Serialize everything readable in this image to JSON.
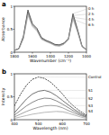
{
  "chart_data": [
    {
      "type": "line",
      "title": "a",
      "x_label": "Wavenumber (cm⁻¹)",
      "y_label": "Absorbance",
      "x": [
        1800,
        1750,
        1700,
        1650,
        1600,
        1550,
        1500,
        1450,
        1400,
        1350,
        1300,
        1250,
        1200,
        1150,
        1100,
        1050,
        1000
      ],
      "xlim": [
        1800,
        1000
      ],
      "xticks": [
        1800,
        1600,
        1400,
        1200,
        1000
      ],
      "ylim": [
        0,
        1
      ],
      "yticks": [
        0,
        0.5,
        1
      ],
      "series": [
        {
          "name": "0 h",
          "color": "#222222",
          "line_style": "solid",
          "values": [
            0.04,
            0.08,
            0.35,
            0.92,
            0.62,
            0.52,
            0.32,
            0.26,
            0.22,
            0.17,
            0.16,
            0.2,
            0.3,
            0.84,
            0.5,
            0.14,
            0.05
          ]
        },
        {
          "name": "2 h",
          "color": "#555555",
          "line_style": "solid",
          "values": [
            0.04,
            0.08,
            0.33,
            0.88,
            0.6,
            0.5,
            0.3,
            0.25,
            0.21,
            0.16,
            0.15,
            0.19,
            0.29,
            0.8,
            0.48,
            0.13,
            0.05
          ]
        },
        {
          "name": "4 h",
          "color": "#888888",
          "line_style": "solid",
          "values": [
            0.04,
            0.07,
            0.31,
            0.84,
            0.58,
            0.48,
            0.29,
            0.24,
            0.2,
            0.15,
            0.14,
            0.18,
            0.28,
            0.76,
            0.46,
            0.12,
            0.05
          ]
        },
        {
          "name": "6 h",
          "color": "#aaaaaa",
          "line_style": "solid",
          "values": [
            0.03,
            0.07,
            0.29,
            0.8,
            0.56,
            0.46,
            0.28,
            0.23,
            0.19,
            0.14,
            0.13,
            0.17,
            0.27,
            0.72,
            0.44,
            0.12,
            0.04
          ]
        }
      ]
    },
    {
      "type": "line",
      "title": "b",
      "x_label": "Wavelength (nm)",
      "y_label": "Intensity",
      "x": [
        400,
        425,
        450,
        475,
        500,
        525,
        550,
        575,
        600,
        625,
        650,
        675,
        700
      ],
      "xlim": [
        400,
        700
      ],
      "xticks": [
        400,
        500,
        600,
        700
      ],
      "ylim": [
        0,
        1
      ],
      "yticks": [
        0,
        0.5,
        1
      ],
      "series": [
        {
          "name": "Control",
          "color": "#000000",
          "line_style": "dashed",
          "values": [
            0.3,
            0.55,
            0.75,
            0.88,
            0.93,
            0.9,
            0.82,
            0.7,
            0.56,
            0.4,
            0.28,
            0.18,
            0.1
          ]
        },
        {
          "name": "S1",
          "color": "#333333",
          "line_style": "solid",
          "values": [
            0.15,
            0.3,
            0.45,
            0.56,
            0.62,
            0.64,
            0.6,
            0.52,
            0.42,
            0.32,
            0.22,
            0.14,
            0.08
          ]
        },
        {
          "name": "S2",
          "color": "#555555",
          "line_style": "solid",
          "values": [
            0.1,
            0.2,
            0.3,
            0.38,
            0.44,
            0.47,
            0.46,
            0.41,
            0.34,
            0.26,
            0.18,
            0.11,
            0.06
          ]
        },
        {
          "name": "S3",
          "color": "#777777",
          "line_style": "solid",
          "values": [
            0.06,
            0.12,
            0.18,
            0.23,
            0.27,
            0.3,
            0.31,
            0.3,
            0.26,
            0.2,
            0.14,
            0.09,
            0.05
          ]
        },
        {
          "name": "S4",
          "color": "#999999",
          "line_style": "solid",
          "values": [
            0.03,
            0.06,
            0.09,
            0.12,
            0.14,
            0.16,
            0.17,
            0.18,
            0.17,
            0.14,
            0.1,
            0.06,
            0.03
          ]
        }
      ]
    }
  ]
}
